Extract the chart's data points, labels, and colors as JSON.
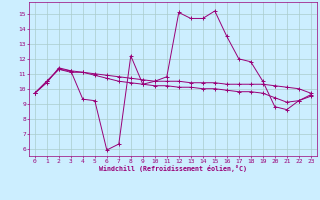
{
  "xlabel": "Windchill (Refroidissement éolien,°C)",
  "bg_color": "#cceeff",
  "grid_color": "#aacccc",
  "line_color": "#990077",
  "xlim": [
    -0.5,
    23.5
  ],
  "ylim": [
    5.5,
    15.8
  ],
  "xticks": [
    0,
    1,
    2,
    3,
    4,
    5,
    6,
    7,
    8,
    9,
    10,
    11,
    12,
    13,
    14,
    15,
    16,
    17,
    18,
    19,
    20,
    21,
    22,
    23
  ],
  "yticks": [
    6,
    7,
    8,
    9,
    10,
    11,
    12,
    13,
    14,
    15
  ],
  "line1_x": [
    0,
    1,
    2,
    3,
    4,
    5,
    6,
    7,
    8,
    9,
    10,
    11,
    12,
    13,
    14,
    15,
    16,
    17,
    18,
    19,
    20,
    21,
    22,
    23
  ],
  "line1_y": [
    9.7,
    10.4,
    11.4,
    11.2,
    9.3,
    9.2,
    5.9,
    6.3,
    12.2,
    10.3,
    10.5,
    10.8,
    15.1,
    14.7,
    14.7,
    15.2,
    13.5,
    12.0,
    11.8,
    10.5,
    8.8,
    8.6,
    9.2,
    9.6
  ],
  "line2_x": [
    0,
    1,
    2,
    3,
    4,
    5,
    6,
    7,
    8,
    9,
    10,
    11,
    12,
    13,
    14,
    15,
    16,
    17,
    18,
    19,
    20,
    21,
    22,
    23
  ],
  "line2_y": [
    9.7,
    10.5,
    11.3,
    11.1,
    11.1,
    11.0,
    10.9,
    10.8,
    10.7,
    10.6,
    10.5,
    10.5,
    10.5,
    10.4,
    10.4,
    10.4,
    10.3,
    10.3,
    10.3,
    10.3,
    10.2,
    10.1,
    10.0,
    9.7
  ],
  "line3_x": [
    0,
    1,
    2,
    3,
    4,
    5,
    6,
    7,
    8,
    9,
    10,
    11,
    12,
    13,
    14,
    15,
    16,
    17,
    18,
    19,
    20,
    21,
    22,
    23
  ],
  "line3_y": [
    9.7,
    10.5,
    11.3,
    11.2,
    11.1,
    10.9,
    10.7,
    10.5,
    10.4,
    10.3,
    10.2,
    10.2,
    10.1,
    10.1,
    10.0,
    10.0,
    9.9,
    9.8,
    9.8,
    9.7,
    9.4,
    9.1,
    9.2,
    9.5
  ],
  "marker": "+",
  "markersize": 2.5,
  "linewidth": 0.7
}
